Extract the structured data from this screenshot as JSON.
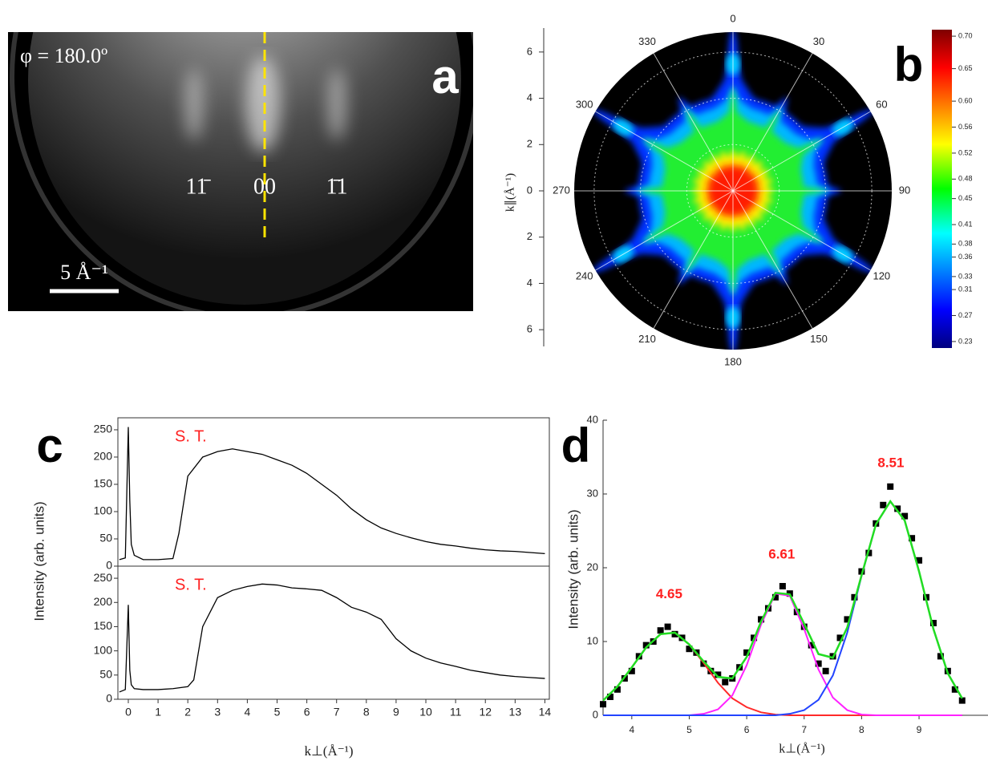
{
  "chart_data": [
    {
      "type": "image",
      "panel_label": "a",
      "annotations": [
        "φ = 180.0º",
        "11̄",
        "00",
        "1̄1",
        "5 Å⁻¹"
      ]
    },
    {
      "type": "polar",
      "panel_label": "b",
      "ylabel": "k∥(Å⁻¹)",
      "ylim": [
        -7,
        7
      ],
      "yticks": [
        6,
        4,
        2,
        0,
        {
          "value": -2,
          "label": "2"
        },
        {
          "value": -4,
          "label": "4"
        },
        {
          "value": -6,
          "label": "6"
        }
      ],
      "angle_ticks": [
        0,
        30,
        60,
        90,
        120,
        150,
        180,
        210,
        240,
        270,
        300,
        330
      ],
      "colorbar": {
        "lim": [
          0.22,
          0.71
        ],
        "ticks": [
          {
            "value": 0.7,
            "label": "0.70"
          },
          0.65,
          {
            "value": 0.6,
            "label": "0.60"
          },
          0.56,
          0.52,
          0.48,
          0.45,
          0.41,
          0.38,
          0.36,
          0.33,
          0.31,
          0.27,
          0.23
        ]
      }
    },
    {
      "type": "line",
      "panel_label": "c",
      "annotation": "S. T.",
      "annotation_color": "#ff2020",
      "ylabel": "Intensity (arb. units)",
      "color": "#000000",
      "x": [
        -0.3,
        -0.1,
        0,
        0.05,
        0.1,
        0.2,
        0.5,
        1,
        1.5,
        1.7,
        2,
        2.5,
        3,
        3.5,
        4,
        4.5,
        5,
        5.5,
        6,
        6.5,
        7,
        7.5,
        8,
        8.5,
        9,
        9.5,
        10,
        10.5,
        11,
        11.5,
        12,
        12.5,
        13,
        13.5,
        14
      ],
      "values": [
        12,
        15,
        255,
        120,
        40,
        20,
        12,
        12,
        14,
        60,
        165,
        200,
        210,
        215,
        210,
        205,
        195,
        185,
        170,
        150,
        130,
        105,
        85,
        70,
        60,
        52,
        45,
        40,
        37,
        33,
        30,
        28,
        27,
        25,
        23
      ],
      "xlim": [
        -0.35,
        14.15
      ],
      "ylim": [
        0,
        272
      ],
      "yticks": [
        0,
        50,
        100,
        150,
        200,
        250
      ]
    },
    {
      "type": "line",
      "annotation": "S. T.",
      "annotation_color": "#ff2020",
      "xlabel": "k⊥(Å⁻¹)",
      "color": "#000000",
      "x": [
        -0.3,
        -0.1,
        0,
        0.05,
        0.1,
        0.2,
        0.5,
        1,
        1.5,
        2,
        2.2,
        2.5,
        3,
        3.5,
        4,
        4.5,
        5,
        5.5,
        6,
        6.5,
        7,
        7.5,
        8,
        8.5,
        9,
        9.5,
        10,
        10.5,
        11,
        11.5,
        12,
        12.5,
        13,
        13.5,
        14
      ],
      "values": [
        15,
        20,
        195,
        60,
        30,
        22,
        20,
        20,
        22,
        26,
        40,
        150,
        210,
        225,
        233,
        238,
        236,
        230,
        228,
        225,
        210,
        190,
        180,
        165,
        125,
        100,
        85,
        75,
        68,
        60,
        55,
        50,
        47,
        45,
        43
      ],
      "xlim": [
        -0.35,
        14.15
      ],
      "ylim": [
        0,
        275
      ],
      "yticks": [
        0,
        50,
        100,
        150,
        200,
        250
      ],
      "xticks": [
        0,
        1,
        2,
        3,
        4,
        5,
        6,
        7,
        8,
        9,
        10,
        11,
        12,
        13,
        14
      ]
    },
    {
      "type": "scatter",
      "panel_label": "d",
      "ylabel": "Intensity (arb. units)",
      "xlabel": "k⊥(Å⁻¹)",
      "xlim": [
        3.5,
        10.2
      ],
      "ylim": [
        0,
        40
      ],
      "xticks": [
        4,
        5,
        6,
        7,
        8,
        9
      ],
      "yticks": [
        0,
        10,
        20,
        30,
        40
      ],
      "points": {
        "color": "#000000",
        "x": [
          3.5,
          3.625,
          3.75,
          3.875,
          4.0,
          4.125,
          4.25,
          4.375,
          4.5,
          4.625,
          4.75,
          4.875,
          5.0,
          5.125,
          5.25,
          5.375,
          5.5,
          5.625,
          5.75,
          5.875,
          6.0,
          6.125,
          6.25,
          6.375,
          6.5,
          6.625,
          6.75,
          6.875,
          7.0,
          7.125,
          7.25,
          7.375,
          7.5,
          7.625,
          7.75,
          7.875,
          8.0,
          8.125,
          8.25,
          8.375,
          8.5,
          8.625,
          8.75,
          8.875,
          9.0,
          9.125,
          9.25,
          9.375,
          9.5,
          9.625,
          9.75
        ],
        "values": [
          1.5,
          2.5,
          3.5,
          5.0,
          6.0,
          8.0,
          9.5,
          10.0,
          11.5,
          12.0,
          11.0,
          10.5,
          9.0,
          8.5,
          7.0,
          6.0,
          5.5,
          4.5,
          5.0,
          6.5,
          8.5,
          10.5,
          13.0,
          14.5,
          16.0,
          17.5,
          16.5,
          14.0,
          12.0,
          9.5,
          7.0,
          6.0,
          8.0,
          10.5,
          13.0,
          16.0,
          19.5,
          22.0,
          26.0,
          28.5,
          31.0,
          28.0,
          27.0,
          24.0,
          21.0,
          16.0,
          12.5,
          8.0,
          6.0,
          3.5,
          2.0
        ]
      },
      "fit_x": [
        3.5,
        3.75,
        4.0,
        4.25,
        4.5,
        4.75,
        5.0,
        5.25,
        5.5,
        5.75,
        6.0,
        6.25,
        6.5,
        6.75,
        7.0,
        7.25,
        7.5,
        7.75,
        8.0,
        8.25,
        8.5,
        8.75,
        9.0,
        9.25,
        9.5,
        9.75
      ],
      "series": [
        {
          "color": "#ff2a2a",
          "values": [
            2.0,
            3.9,
            6.5,
            9.2,
            11.0,
            11.2,
            9.6,
            7.1,
            4.4,
            2.3,
            1.1,
            0.4,
            0.1,
            0,
            0,
            0,
            0,
            0,
            0,
            0,
            0,
            0,
            0,
            0,
            0,
            0
          ]
        },
        {
          "color": "#ff22ff",
          "values": [
            0,
            0,
            0,
            0,
            0,
            0,
            0,
            0.2,
            0.8,
            2.7,
            6.8,
            12.3,
            16.5,
            16.2,
            11.7,
            6.2,
            2.4,
            0.7,
            0.1,
            0,
            0,
            0,
            0,
            0,
            0,
            0
          ]
        },
        {
          "color": "#2244ff",
          "values": [
            0,
            0,
            0,
            0,
            0,
            0,
            0,
            0,
            0,
            0,
            0,
            0,
            0,
            0.2,
            0.7,
            2.1,
            5.4,
            11.2,
            18.9,
            25.9,
            29.0,
            26.4,
            19.5,
            11.7,
            5.7,
            2.3
          ]
        },
        {
          "color": "#22dd22",
          "values": [
            2.0,
            3.9,
            6.5,
            9.2,
            11.0,
            11.2,
            9.6,
            7.3,
            5.2,
            5.0,
            7.9,
            12.7,
            16.6,
            16.4,
            12.4,
            8.3,
            7.8,
            11.9,
            19.0,
            25.9,
            29.0,
            26.4,
            19.5,
            11.7,
            5.7,
            2.3
          ]
        }
      ],
      "peaks": [
        4.65,
        6.61,
        8.51
      ],
      "peak_color": "#ff2020"
    }
  ]
}
